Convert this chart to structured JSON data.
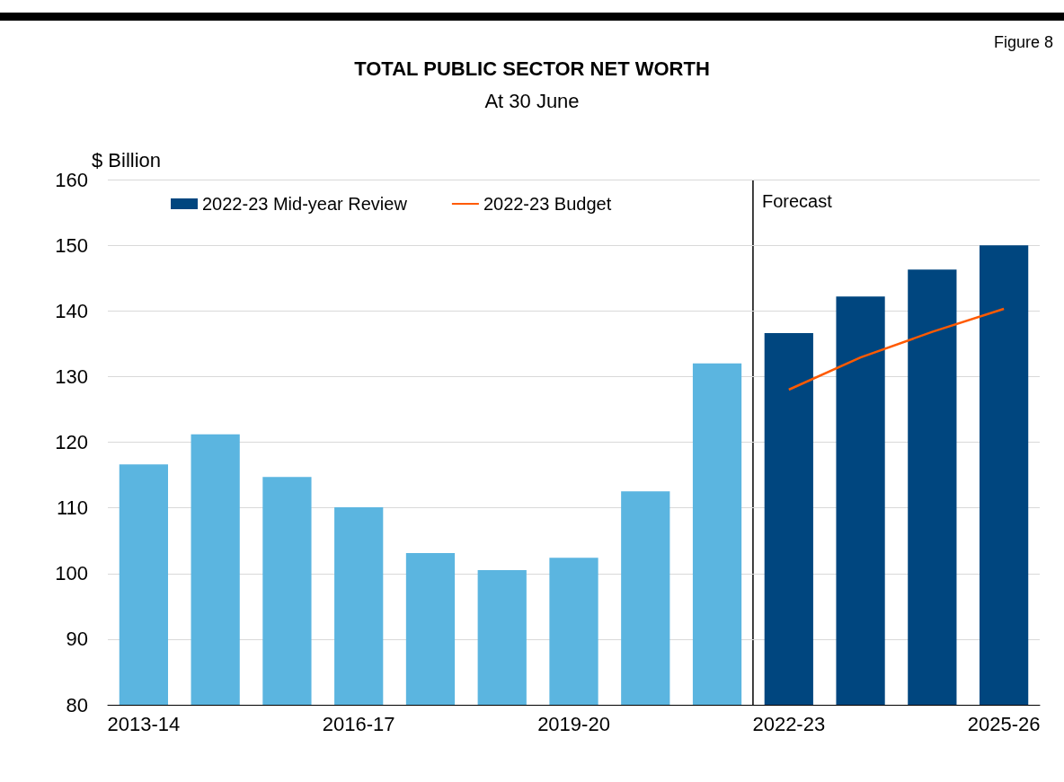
{
  "chart_data": {
    "type": "bar",
    "title": "TOTAL PUBLIC SECTOR NET WORTH",
    "subtitle": "At 30 June",
    "ylabel": "$ Billion",
    "categories": [
      "2013-14",
      null,
      null,
      "2016-17",
      null,
      null,
      "2019-20",
      null,
      null,
      "2022-23",
      null,
      null,
      "2025-26"
    ],
    "series": [
      {
        "name": "2022-23 Mid-year Review",
        "color": "#00467f",
        "colors": [
          "#5bb5e0",
          "#5bb5e0",
          "#5bb5e0",
          "#5bb5e0",
          "#5bb5e0",
          "#5bb5e0",
          "#5bb5e0",
          "#5bb5e0",
          "#5bb5e0",
          "#00467f",
          "#00467f",
          "#00467f",
          "#00467f"
        ],
        "values": [
          116.6,
          121.2,
          114.7,
          110.1,
          103.1,
          100.5,
          102.4,
          112.5,
          132.0,
          136.6,
          142.2,
          146.3,
          150.0
        ]
      },
      {
        "name": "2022-23 Budget",
        "type": "line",
        "color": "#ff5a00",
        "values": [
          null,
          null,
          null,
          null,
          null,
          null,
          null,
          null,
          null,
          128.0,
          132.9,
          136.8,
          140.3
        ]
      }
    ],
    "ylim": [
      80,
      160
    ],
    "yticks": [
      80,
      90,
      100,
      110,
      120,
      130,
      140,
      150,
      160
    ],
    "grid": "y",
    "legend": "top left",
    "marker": "none",
    "ref_lines": [
      {
        "axis": "x",
        "value": "2022-23",
        "label": "Forecast",
        "color": "#000000"
      }
    ],
    "annotations": [
      "Figure 8"
    ]
  }
}
